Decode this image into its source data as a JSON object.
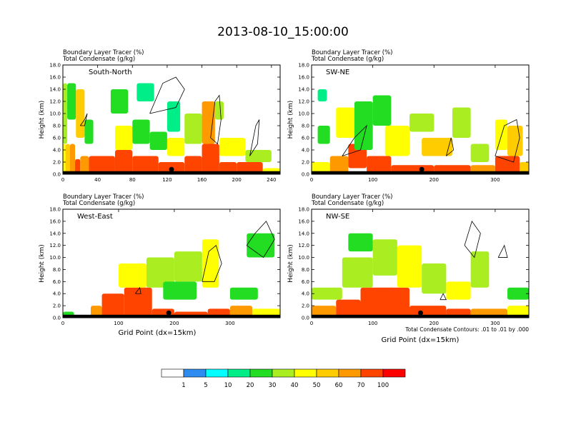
{
  "figure": {
    "title": "2013-08-10_15:00:00",
    "contour_note": "Total Condensate Contours: .01 to .01 by .000"
  },
  "chart_data": [
    {
      "type": "heatmap",
      "name": "South-North",
      "subtitle_lines": [
        "Boundary Layer Tracer   (%)",
        "Total Condensate   (g/kg)"
      ],
      "ylabel": "Height (km)",
      "xlabel": "",
      "xlim": [
        0,
        250
      ],
      "ylim": [
        0,
        18
      ],
      "xticks": [
        0,
        40,
        80,
        120,
        160,
        200,
        240
      ],
      "yticks": [
        "0.0",
        "2.0",
        "4.0",
        "6.0",
        "8.0",
        "10.0",
        "12.0",
        "14.0",
        "16.0",
        "18.0"
      ],
      "marker_x": 125,
      "tracer_cells": [
        [
          0,
          3,
          0,
          5,
          40
        ],
        [
          3,
          8,
          0,
          5,
          50
        ],
        [
          8,
          14,
          0,
          5,
          60
        ],
        [
          14,
          20,
          0,
          2.5,
          70
        ],
        [
          20,
          30,
          0,
          3,
          60
        ],
        [
          30,
          60,
          0,
          3,
          70
        ],
        [
          60,
          80,
          0,
          4,
          80
        ],
        [
          80,
          110,
          0,
          3,
          80
        ],
        [
          110,
          140,
          0,
          2,
          90
        ],
        [
          140,
          160,
          0,
          3,
          80
        ],
        [
          160,
          180,
          0,
          5,
          80
        ],
        [
          180,
          200,
          0,
          2,
          70
        ],
        [
          200,
          230,
          0,
          2,
          70
        ],
        [
          230,
          250,
          0,
          1,
          40
        ],
        [
          0,
          5,
          5,
          15,
          30
        ],
        [
          5,
          15,
          9,
          15,
          20
        ],
        [
          15,
          25,
          6,
          14,
          50
        ],
        [
          25,
          35,
          5,
          9,
          20
        ],
        [
          60,
          80,
          4,
          8,
          40
        ],
        [
          80,
          100,
          5,
          9,
          25
        ],
        [
          100,
          120,
          4,
          7,
          20
        ],
        [
          120,
          140,
          3,
          6,
          40
        ],
        [
          120,
          135,
          7,
          12,
          15
        ],
        [
          140,
          160,
          5,
          10,
          30
        ],
        [
          160,
          175,
          5,
          12,
          60
        ],
        [
          175,
          185,
          9,
          12,
          30
        ],
        [
          180,
          210,
          3,
          6,
          40
        ],
        [
          210,
          240,
          2,
          4,
          30
        ],
        [
          55,
          75,
          10,
          14,
          20
        ],
        [
          85,
          105,
          12,
          15,
          15
        ]
      ],
      "contours": [
        [
          [
            20,
            8
          ],
          [
            25,
            9
          ],
          [
            28,
            10
          ],
          [
            25,
            8
          ],
          [
            20,
            8
          ]
        ],
        [
          [
            100,
            10
          ],
          [
            115,
            15
          ],
          [
            130,
            16
          ],
          [
            140,
            14
          ],
          [
            130,
            11
          ],
          [
            100,
            10
          ]
        ],
        [
          [
            170,
            6
          ],
          [
            175,
            12
          ],
          [
            180,
            13
          ],
          [
            182,
            9
          ],
          [
            178,
            5
          ],
          [
            170,
            6
          ]
        ],
        [
          [
            215,
            3
          ],
          [
            222,
            8
          ],
          [
            226,
            9
          ],
          [
            224,
            5
          ],
          [
            215,
            3
          ]
        ]
      ]
    },
    {
      "type": "heatmap",
      "name": "SW-NE",
      "subtitle_lines": [
        "Boundary Layer Tracer   (%)",
        "Total Condensate   (g/kg)"
      ],
      "ylabel": "Height (km)",
      "xlabel": "",
      "xlim": [
        0,
        355
      ],
      "ylim": [
        0,
        18
      ],
      "xticks": [
        0,
        100,
        200,
        300
      ],
      "yticks": [
        "0.0",
        "2.0",
        "4.0",
        "6.0",
        "8.0",
        "10.0",
        "12.0",
        "14.0",
        "16.0",
        "18.0"
      ],
      "marker_x": 180,
      "tracer_cells": [
        [
          0,
          30,
          0,
          2,
          40
        ],
        [
          30,
          60,
          0,
          3,
          60
        ],
        [
          60,
          90,
          1,
          5,
          80
        ],
        [
          90,
          130,
          0,
          3,
          90
        ],
        [
          130,
          200,
          0,
          1.5,
          80
        ],
        [
          200,
          260,
          0,
          1.5,
          70
        ],
        [
          260,
          300,
          0,
          1.5,
          60
        ],
        [
          300,
          340,
          0,
          3,
          80
        ],
        [
          340,
          355,
          0,
          2,
          50
        ],
        [
          10,
          30,
          5,
          8,
          20
        ],
        [
          40,
          70,
          6,
          11,
          40
        ],
        [
          70,
          100,
          4,
          12,
          25
        ],
        [
          100,
          130,
          8,
          13,
          20
        ],
        [
          120,
          160,
          3,
          8,
          40
        ],
        [
          160,
          200,
          7,
          10,
          30
        ],
        [
          180,
          230,
          3,
          6,
          50
        ],
        [
          230,
          260,
          6,
          11,
          30
        ],
        [
          260,
          290,
          2,
          5,
          30
        ],
        [
          300,
          320,
          4,
          9,
          40
        ],
        [
          320,
          345,
          3,
          8,
          50
        ],
        [
          10,
          25,
          12,
          14,
          15
        ]
      ],
      "contours": [
        [
          [
            50,
            3
          ],
          [
            70,
            6
          ],
          [
            90,
            8
          ],
          [
            80,
            4
          ],
          [
            50,
            3
          ]
        ],
        [
          [
            300,
            3
          ],
          [
            315,
            8
          ],
          [
            335,
            9
          ],
          [
            340,
            6
          ],
          [
            330,
            2
          ],
          [
            300,
            3
          ]
        ],
        [
          [
            220,
            3
          ],
          [
            228,
            6
          ],
          [
            232,
            4
          ],
          [
            220,
            3
          ]
        ]
      ]
    },
    {
      "type": "heatmap",
      "name": "West-East",
      "subtitle_lines": [
        "Boundary Layer Tracer   (%)",
        "Total Condensate   (g/kg)"
      ],
      "ylabel": "Height (km)",
      "xlabel": "Grid Point (dx=15km)",
      "xlim": [
        0,
        390
      ],
      "ylim": [
        0,
        18
      ],
      "xticks": [
        0,
        100,
        200,
        300
      ],
      "yticks": [
        "0.0",
        "2.0",
        "4.0",
        "6.0",
        "8.0",
        "10.0",
        "12.0",
        "14.0",
        "16.0",
        "18.0"
      ],
      "marker_x": 190,
      "tracer_cells": [
        [
          0,
          20,
          0,
          1,
          20
        ],
        [
          50,
          70,
          0,
          2,
          60
        ],
        [
          70,
          110,
          0,
          4,
          80
        ],
        [
          110,
          160,
          0,
          5,
          90
        ],
        [
          160,
          200,
          0,
          1.5,
          80
        ],
        [
          200,
          260,
          0,
          1,
          80
        ],
        [
          260,
          300,
          0,
          1.5,
          70
        ],
        [
          300,
          340,
          0,
          2,
          60
        ],
        [
          340,
          390,
          0,
          1.5,
          40
        ],
        [
          100,
          150,
          5,
          9,
          40
        ],
        [
          150,
          200,
          5,
          10,
          30
        ],
        [
          200,
          250,
          6,
          11,
          30
        ],
        [
          250,
          280,
          5,
          13,
          40
        ],
        [
          180,
          240,
          3,
          6,
          20
        ],
        [
          300,
          350,
          3,
          5,
          25
        ],
        [
          330,
          380,
          10,
          14,
          20
        ]
      ],
      "contours": [
        [
          [
            250,
            6
          ],
          [
            262,
            11
          ],
          [
            275,
            12
          ],
          [
            285,
            9
          ],
          [
            272,
            6
          ],
          [
            250,
            6
          ]
        ],
        [
          [
            330,
            12
          ],
          [
            345,
            14
          ],
          [
            365,
            16
          ],
          [
            380,
            13
          ],
          [
            360,
            10
          ],
          [
            330,
            12
          ]
        ],
        [
          [
            130,
            4
          ],
          [
            138,
            5
          ],
          [
            140,
            4
          ],
          [
            130,
            4
          ]
        ]
      ]
    },
    {
      "type": "heatmap",
      "name": "NW-SE",
      "subtitle_lines": [
        "Boundary Layer Tracer   (%)",
        "Total Condensate   (g/kg)"
      ],
      "ylabel": "Height (km)",
      "xlabel": "Grid Point (dx=15km)",
      "xlim": [
        0,
        355
      ],
      "ylim": [
        0,
        18
      ],
      "xticks": [
        0,
        100,
        200,
        300
      ],
      "yticks": [
        "0.0",
        "2.0",
        "4.0",
        "6.0",
        "8.0",
        "10.0",
        "12.0",
        "14.0",
        "16.0",
        "18.0"
      ],
      "marker_x": 178,
      "tracer_cells": [
        [
          0,
          40,
          0,
          2,
          60
        ],
        [
          40,
          80,
          0,
          3,
          80
        ],
        [
          80,
          160,
          0,
          5,
          90
        ],
        [
          160,
          220,
          0,
          2,
          80
        ],
        [
          220,
          260,
          0,
          1.5,
          70
        ],
        [
          260,
          320,
          0,
          1.5,
          60
        ],
        [
          320,
          355,
          0,
          2,
          40
        ],
        [
          0,
          50,
          3,
          5,
          30
        ],
        [
          50,
          100,
          5,
          10,
          30
        ],
        [
          100,
          140,
          7,
          13,
          30
        ],
        [
          140,
          180,
          5,
          12,
          40
        ],
        [
          180,
          220,
          4,
          9,
          30
        ],
        [
          220,
          260,
          3,
          6,
          40
        ],
        [
          260,
          290,
          5,
          11,
          30
        ],
        [
          60,
          100,
          11,
          14,
          20
        ],
        [
          320,
          355,
          3,
          5,
          20
        ]
      ],
      "contours": [
        [
          [
            210,
            3
          ],
          [
            215,
            4
          ],
          [
            220,
            3
          ],
          [
            210,
            3
          ]
        ],
        [
          [
            250,
            12
          ],
          [
            262,
            16
          ],
          [
            276,
            14
          ],
          [
            266,
            10
          ],
          [
            250,
            12
          ]
        ],
        [
          [
            305,
            10
          ],
          [
            315,
            12
          ],
          [
            320,
            10
          ],
          [
            305,
            10
          ]
        ]
      ]
    }
  ],
  "colorbar": {
    "labels": [
      "1",
      "5",
      "10",
      "20",
      "30",
      "40",
      "50",
      "60",
      "70",
      "100"
    ],
    "colors": [
      "#ffffff",
      "#2e8cf0",
      "#00ffff",
      "#00ee88",
      "#22dd22",
      "#aaee22",
      "#ffff00",
      "#ffcc00",
      "#ff9900",
      "#ff4400",
      "#ff0000"
    ]
  }
}
